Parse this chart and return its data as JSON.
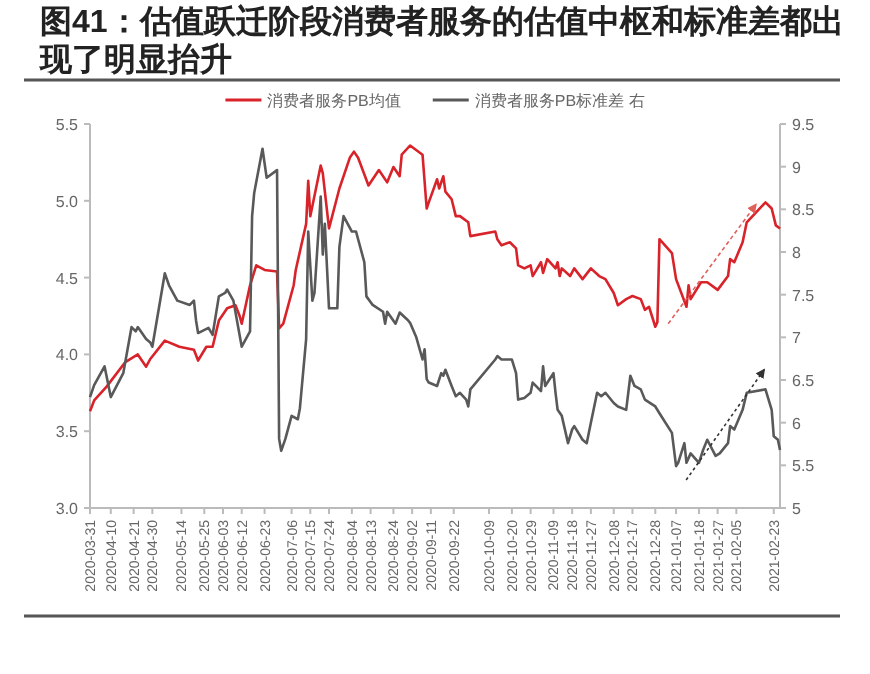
{
  "chart_data": {
    "type": "line",
    "title": "图41：估值跃迁阶段消费者服务的估值中枢和标准差都出现了明显抬升",
    "xlim": [
      "2020-03-31",
      "2021-02-26"
    ],
    "xticks": [
      "2020-03-31",
      "2020-04-10",
      "2020-04-21",
      "2020-04-30",
      "2020-05-14",
      "2020-05-25",
      "2020-06-03",
      "2020-06-12",
      "2020-06-23",
      "2020-07-06",
      "2020-07-15",
      "2020-07-24",
      "2020-08-04",
      "2020-08-13",
      "2020-08-24",
      "2020-09-02",
      "2020-09-11",
      "2020-09-22",
      "2020-10-09",
      "2020-10-20",
      "2020-10-29",
      "2020-11-09",
      "2020-11-18",
      "2020-11-27",
      "2020-12-08",
      "2020-12-17",
      "2020-12-28",
      "2021-01-07",
      "2021-01-18",
      "2021-01-27",
      "2021-02-05",
      "2021-02-23"
    ],
    "ylim": [
      3.0,
      5.5
    ],
    "yticks": [
      {
        "value": 3,
        "label": "3.0"
      },
      {
        "value": 3.5,
        "label": "3.5"
      },
      {
        "value": 4,
        "label": "4.0"
      },
      {
        "value": 4.5,
        "label": "4.5"
      },
      {
        "value": 5,
        "label": "5.0"
      },
      {
        "value": 5.5,
        "label": "5.5"
      }
    ],
    "y2lim": [
      5,
      9.5
    ],
    "y2ticks": [
      5,
      5.5,
      6,
      6.5,
      7,
      7.5,
      8,
      8.5,
      9,
      9.5
    ],
    "legend": "top",
    "series": [
      {
        "name": "消费者服务PB均值",
        "color": "#d9232a",
        "axis": "y",
        "x": [
          "2020-03-31",
          "2020-04-02",
          "2020-04-08",
          "2020-04-17",
          "2020-04-23",
          "2020-04-27",
          "2020-04-29",
          "2020-05-06",
          "2020-05-13",
          "2020-05-20",
          "2020-05-22",
          "2020-05-26",
          "2020-05-29",
          "2020-06-01",
          "2020-06-05",
          "2020-06-09",
          "2020-06-11",
          "2020-06-12",
          "2020-06-16",
          "2020-06-19",
          "2020-06-23",
          "2020-06-29",
          "2020-06-30",
          "2020-07-02",
          "2020-07-07",
          "2020-07-08",
          "2020-07-13",
          "2020-07-14",
          "2020-07-15",
          "2020-07-20",
          "2020-07-21",
          "2020-07-24",
          "2020-07-29",
          "2020-08-03",
          "2020-08-05",
          "2020-08-07",
          "2020-08-12",
          "2020-08-17",
          "2020-08-21",
          "2020-08-24",
          "2020-08-27",
          "2020-08-28",
          "2020-09-01",
          "2020-09-07",
          "2020-09-09",
          "2020-09-10",
          "2020-09-14",
          "2020-09-15",
          "2020-09-17",
          "2020-09-18",
          "2020-09-21",
          "2020-09-23",
          "2020-09-25",
          "2020-09-29",
          "2020-09-30",
          "2020-10-12",
          "2020-10-13",
          "2020-10-15",
          "2020-10-19",
          "2020-10-22",
          "2020-10-23",
          "2020-10-26",
          "2020-10-29",
          "2020-10-30",
          "2020-11-03",
          "2020-11-04",
          "2020-11-06",
          "2020-11-10",
          "2020-11-11",
          "2020-11-12",
          "2020-11-13",
          "2020-11-17",
          "2020-11-19",
          "2020-11-23",
          "2020-11-27",
          "2020-12-01",
          "2020-12-04",
          "2020-12-08",
          "2020-12-10",
          "2020-12-14",
          "2020-12-17",
          "2020-12-21",
          "2020-12-23",
          "2020-12-25",
          "2020-12-28",
          "2020-12-29",
          "2020-12-30",
          "2021-01-05",
          "2021-01-07",
          "2021-01-12",
          "2021-01-13",
          "2021-01-14",
          "2021-01-19",
          "2021-01-22",
          "2021-01-27",
          "2021-02-01",
          "2021-02-02",
          "2021-02-04",
          "2021-02-08",
          "2021-02-10",
          "2021-02-19",
          "2021-02-22",
          "2021-02-24",
          "2021-02-26"
        ],
        "values": [
          3.63,
          3.7,
          3.79,
          3.95,
          4.0,
          3.92,
          3.97,
          4.09,
          4.05,
          4.03,
          3.96,
          4.05,
          4.05,
          4.22,
          4.3,
          4.32,
          4.25,
          4.2,
          4.45,
          4.58,
          4.55,
          4.54,
          4.17,
          4.2,
          4.45,
          4.55,
          4.85,
          5.13,
          4.9,
          5.23,
          5.18,
          4.82,
          5.08,
          5.28,
          5.32,
          5.28,
          5.1,
          5.2,
          5.12,
          5.22,
          5.16,
          5.3,
          5.36,
          5.3,
          4.95,
          4.99,
          5.14,
          5.08,
          5.16,
          5.06,
          5.01,
          4.9,
          4.9,
          4.86,
          4.77,
          4.8,
          4.75,
          4.71,
          4.73,
          4.69,
          4.58,
          4.56,
          4.58,
          4.51,
          4.6,
          4.53,
          4.62,
          4.56,
          4.6,
          4.51,
          4.56,
          4.51,
          4.56,
          4.49,
          4.56,
          4.51,
          4.49,
          4.4,
          4.32,
          4.36,
          4.38,
          4.36,
          4.29,
          4.31,
          4.18,
          4.21,
          4.75,
          4.66,
          4.49,
          4.31,
          4.45,
          4.36,
          4.47,
          4.47,
          4.42,
          4.51,
          4.62,
          4.6,
          4.73,
          4.86,
          4.99,
          4.95,
          4.84,
          4.82
        ]
      },
      {
        "name": "消费者服务PB标准差 右",
        "color": "#595959",
        "axis": "y2",
        "x": [
          "2020-03-31",
          "2020-04-02",
          "2020-04-07",
          "2020-04-10",
          "2020-04-16",
          "2020-04-20",
          "2020-04-22",
          "2020-04-23",
          "2020-04-27",
          "2020-04-29",
          "2020-04-30",
          "2020-05-06",
          "2020-05-08",
          "2020-05-12",
          "2020-05-18",
          "2020-05-20",
          "2020-05-21",
          "2020-05-22",
          "2020-05-27",
          "2020-05-29",
          "2020-06-01",
          "2020-06-04",
          "2020-06-05",
          "2020-06-08",
          "2020-06-10",
          "2020-06-12",
          "2020-06-16",
          "2020-06-17",
          "2020-06-18",
          "2020-06-22",
          "2020-06-24",
          "2020-06-29",
          "2020-06-30",
          "2020-07-01",
          "2020-07-03",
          "2020-07-06",
          "2020-07-09",
          "2020-07-10",
          "2020-07-13",
          "2020-07-14",
          "2020-07-16",
          "2020-07-17",
          "2020-07-20",
          "2020-07-21",
          "2020-07-22",
          "2020-07-24",
          "2020-07-28",
          "2020-07-29",
          "2020-07-31",
          "2020-08-04",
          "2020-08-06",
          "2020-08-10",
          "2020-08-11",
          "2020-08-14",
          "2020-08-19",
          "2020-08-20",
          "2020-08-21",
          "2020-08-25",
          "2020-08-27",
          "2020-08-31",
          "2020-09-01",
          "2020-09-04",
          "2020-09-07",
          "2020-09-08",
          "2020-09-09",
          "2020-09-10",
          "2020-09-14",
          "2020-09-16",
          "2020-09-17",
          "2020-09-18",
          "2020-09-21",
          "2020-09-23",
          "2020-09-25",
          "2020-09-28",
          "2020-09-29",
          "2020-09-30",
          "2020-10-12",
          "2020-10-13",
          "2020-10-15",
          "2020-10-20",
          "2020-10-22",
          "2020-10-23",
          "2020-10-26",
          "2020-10-29",
          "2020-10-30",
          "2020-11-03",
          "2020-11-04",
          "2020-11-05",
          "2020-11-09",
          "2020-11-10",
          "2020-11-11",
          "2020-11-13",
          "2020-11-16",
          "2020-11-18",
          "2020-11-19",
          "2020-11-23",
          "2020-11-25",
          "2020-11-27",
          "2020-11-30",
          "2020-12-02",
          "2020-12-04",
          "2020-12-08",
          "2020-12-10",
          "2020-12-14",
          "2020-12-16",
          "2020-12-18",
          "2020-12-21",
          "2020-12-23",
          "2020-12-28",
          "2020-12-30",
          "2021-01-05",
          "2021-01-07",
          "2021-01-08",
          "2021-01-11",
          "2021-01-12",
          "2021-01-14",
          "2021-01-18",
          "2021-01-20",
          "2021-01-22",
          "2021-01-26",
          "2021-01-28",
          "2021-02-01",
          "2021-02-02",
          "2021-02-04",
          "2021-02-08",
          "2021-02-10",
          "2021-02-19",
          "2021-02-22",
          "2021-02-23",
          "2021-02-25",
          "2021-02-26"
        ],
        "values": [
          6.3,
          6.44,
          6.66,
          6.3,
          6.58,
          7.12,
          7.07,
          7.12,
          6.98,
          6.94,
          6.89,
          7.75,
          7.61,
          7.43,
          7.38,
          7.43,
          7.2,
          7.05,
          7.11,
          7.03,
          7.48,
          7.52,
          7.56,
          7.43,
          7.16,
          6.89,
          7.07,
          8.42,
          8.69,
          9.21,
          8.87,
          8.96,
          5.81,
          5.67,
          5.81,
          6.08,
          6.04,
          6.17,
          6.98,
          8.24,
          7.43,
          7.52,
          8.65,
          7.97,
          8.33,
          7.34,
          7.34,
          8.06,
          8.42,
          8.24,
          8.24,
          7.88,
          7.48,
          7.38,
          7.3,
          7.16,
          7.3,
          7.16,
          7.29,
          7.2,
          7.17,
          7.0,
          6.74,
          6.86,
          6.51,
          6.47,
          6.43,
          6.58,
          6.55,
          6.62,
          6.43,
          6.31,
          6.35,
          6.27,
          6.19,
          6.39,
          6.74,
          6.78,
          6.74,
          6.74,
          6.58,
          6.27,
          6.29,
          6.35,
          6.47,
          6.37,
          6.66,
          6.43,
          6.58,
          6.35,
          6.15,
          6.08,
          5.76,
          5.92,
          5.96,
          5.8,
          5.76,
          6.0,
          6.35,
          6.31,
          6.35,
          6.23,
          6.19,
          6.15,
          6.55,
          6.43,
          6.39,
          6.27,
          6.19,
          6.11,
          5.88,
          5.49,
          5.53,
          5.76,
          5.53,
          5.64,
          5.53,
          5.68,
          5.8,
          5.61,
          5.64,
          5.76,
          5.96,
          5.92,
          6.15,
          6.35,
          6.39,
          6.15,
          5.84,
          5.8,
          5.68
        ]
      }
    ]
  }
}
